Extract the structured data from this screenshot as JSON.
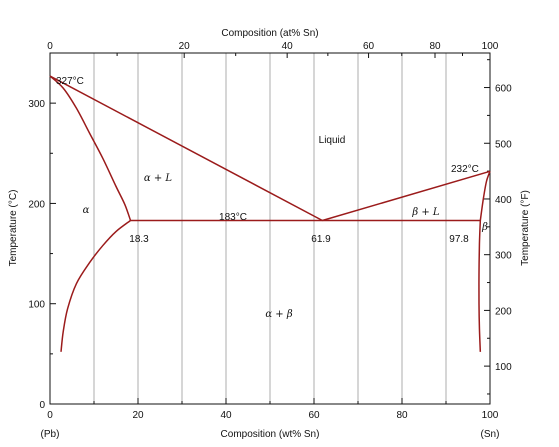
{
  "chart_data": {
    "type": "phase-diagram",
    "x_bottom": {
      "label": "Composition (wt% Sn)",
      "range": [
        0,
        100
      ],
      "ticks": [
        0,
        20,
        40,
        60,
        80,
        100
      ],
      "end_labels": [
        "(Pb)",
        "(Sn)"
      ]
    },
    "x_top": {
      "label": "Composition (at% Sn)",
      "ticks": [
        {
          "at": 0,
          "wt": 0
        },
        {
          "at": 20,
          "wt": 30.5
        },
        {
          "at": 40,
          "wt": 53.9
        },
        {
          "at": 60,
          "wt": 72.4
        },
        {
          "at": 80,
          "wt": 87.5
        },
        {
          "at": 100,
          "wt": 100
        }
      ]
    },
    "y_left": {
      "label": "Temperature (°C)",
      "range": [
        0,
        350
      ],
      "ticks": [
        0,
        100,
        200,
        300
      ]
    },
    "y_right": {
      "label": "Temperature (°F)",
      "ticks": [
        100,
        200,
        300,
        400,
        500,
        600
      ]
    },
    "phase_boundaries": {
      "liquidus_left": [
        [
          0,
          327
        ],
        [
          61.9,
          183
        ]
      ],
      "liquidus_right": [
        [
          61.9,
          183
        ],
        [
          100,
          232
        ]
      ],
      "eutectic_isotherm": [
        [
          18.3,
          183
        ],
        [
          97.8,
          183
        ]
      ],
      "alpha_solidus": [
        [
          0,
          327
        ],
        [
          3,
          315
        ],
        [
          6,
          295
        ],
        [
          9,
          270
        ],
        [
          12,
          245
        ],
        [
          15,
          217
        ],
        [
          17,
          199
        ],
        [
          18.3,
          183
        ]
      ],
      "alpha_solvus": [
        [
          18.3,
          183
        ],
        [
          15,
          172
        ],
        [
          12,
          158
        ],
        [
          9,
          141
        ],
        [
          6,
          120
        ],
        [
          4,
          95
        ],
        [
          3,
          72
        ],
        [
          2.5,
          52
        ]
      ],
      "beta_solidus": [
        [
          97.8,
          183
        ],
        [
          98.5,
          205
        ],
        [
          99.2,
          222
        ],
        [
          100,
          232
        ]
      ],
      "beta_solvus": [
        [
          97.8,
          183
        ],
        [
          97.6,
          160
        ],
        [
          97.5,
          130
        ],
        [
          97.5,
          100
        ],
        [
          97.6,
          75
        ],
        [
          97.8,
          52
        ]
      ]
    },
    "annotations": {
      "melt_pb": "327°C",
      "melt_sn": "232°C",
      "eutectic_temp": "183°C",
      "comp_alpha": "18.3",
      "comp_eutectic": "61.9",
      "comp_beta": "97.8"
    },
    "regions": {
      "liquid": "Liquid",
      "alpha": "α",
      "beta": "β",
      "alpha_liquid": "α + L",
      "beta_liquid": "β + L",
      "alpha_beta": "α + β"
    },
    "colors": {
      "curve": "#9b1b1b",
      "grid": "#9a9a9a",
      "axis": "#111111"
    }
  }
}
